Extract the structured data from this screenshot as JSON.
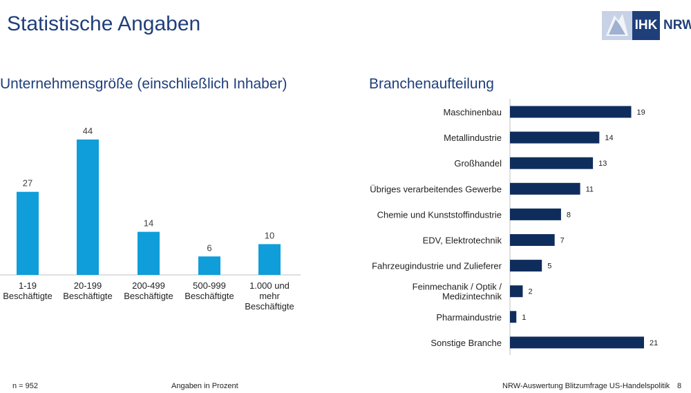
{
  "header": {
    "title": "Statistische Angaben",
    "logo_text_ihk": "IHK",
    "logo_text_nrw": "NRW"
  },
  "colors": {
    "title_blue": "#1f3f7a",
    "bar_light_blue": "#0f9ed9",
    "bar_dark_blue": "#0f2d5c"
  },
  "chart_data": [
    {
      "type": "bar",
      "orientation": "vertical",
      "title": "Unternehmensgröße (einschließlich Inhaber)",
      "categories": [
        "1-19 Beschäftigte",
        "20-199 Beschäftigte",
        "200-499 Beschäftigte",
        "500-999 Beschäftigte",
        "1.000 und mehr Beschäftigte"
      ],
      "category_lines": [
        [
          "1-19",
          "Beschäftigte"
        ],
        [
          "20-199",
          "Beschäftigte"
        ],
        [
          "200-499",
          "Beschäftigte"
        ],
        [
          "500-999",
          "Beschäftigte"
        ],
        [
          "1.000 und",
          "mehr",
          "Beschäftigte"
        ]
      ],
      "values": [
        27,
        44,
        14,
        6,
        10
      ],
      "data_labels": true,
      "grid": false
    },
    {
      "type": "bar",
      "orientation": "horizontal",
      "title": "Branchenaufteilung",
      "categories": [
        "Maschinenbau",
        "Metallindustrie",
        "Großhandel",
        "Übriges verarbeitendes Gewerbe",
        "Chemie und Kunststoffindustrie",
        "EDV, Elektrotechnik",
        "Fahrzeugindustrie und Zulieferer",
        "Feinmechanik / Optik / Medizintechnik",
        "Pharmaindustrie",
        "Sonstige Branche"
      ],
      "category_lines": [
        [
          "Maschinenbau"
        ],
        [
          "Metallindustrie"
        ],
        [
          "Großhandel"
        ],
        [
          "Übriges verarbeitendes Gewerbe"
        ],
        [
          "Chemie und Kunststoffindustrie"
        ],
        [
          "EDV, Elektrotechnik"
        ],
        [
          "Fahrzeugindustrie und Zulieferer"
        ],
        [
          "Feinmechanik / Optik /",
          "Medizintechnik"
        ],
        [
          "Pharmaindustrie"
        ],
        [
          "Sonstige Branche"
        ]
      ],
      "values": [
        19,
        14,
        13,
        11,
        8,
        7,
        5,
        2,
        1,
        21
      ],
      "data_labels": true,
      "grid": false
    }
  ],
  "footer": {
    "sample": "n = 952",
    "unit_note": "Angaben in Prozent",
    "source": "NRW-Auswertung Blitzumfrage US-Handelspolitik",
    "page_number": "8"
  }
}
